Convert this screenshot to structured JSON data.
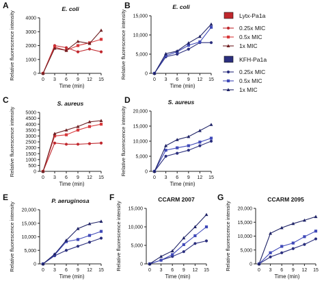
{
  "colors": {
    "lytx": "#c0272d",
    "kfh": "#2b2f7e",
    "lytx_dark": "#6e1f22",
    "kfh_dark": "#1e2266",
    "lytx_light": "#d8373a",
    "kfh_light": "#3f49b8"
  },
  "legends": [
    {
      "title": "Lytx-Pa1a",
      "group": "lytx",
      "entries": [
        {
          "label": "0.25x MIC",
          "marker": "circle"
        },
        {
          "label": "0.5x MIC",
          "marker": "square"
        },
        {
          "label": "1x MIC",
          "marker": "triangle"
        }
      ]
    },
    {
      "title": "KFH-Pa1a",
      "group": "kfh",
      "entries": [
        {
          "label": "0.25x MIC",
          "marker": "circle"
        },
        {
          "label": "0.5x MIC",
          "marker": "square"
        },
        {
          "label": "1x MIC",
          "marker": "triangle"
        }
      ]
    }
  ],
  "chart_data": [
    {
      "panel_letter": "A",
      "type": "line",
      "title": "E. coli",
      "title_italic": true,
      "group": "lytx",
      "xlabel": "Time (min)",
      "ylabel": "Relative fluorescence intensity",
      "x": [
        0,
        3,
        6,
        9,
        12,
        15
      ],
      "xticks": [
        "0",
        "3",
        "6",
        "9",
        "12",
        "15"
      ],
      "ylim": [
        0,
        4000
      ],
      "yticks": [
        0,
        1000,
        2000,
        3000,
        4000
      ],
      "ytick_labels": [
        "0",
        "1000",
        "2000",
        "3000",
        "4000"
      ],
      "series": [
        {
          "legend_label": "0.25x MIC",
          "marker": "circle",
          "values": [
            0,
            2000,
            1850,
            1550,
            1750,
            1550
          ]
        },
        {
          "legend_label": "0.5x MIC",
          "marker": "square",
          "values": [
            0,
            1900,
            1650,
            2000,
            2200,
            2450
          ]
        },
        {
          "legend_label": "1x MIC",
          "marker": "triangle",
          "values": [
            0,
            1800,
            1650,
            2300,
            2150,
            3100
          ]
        }
      ]
    },
    {
      "panel_letter": "B",
      "type": "line",
      "title": "E. coli",
      "title_italic": true,
      "group": "kfh",
      "xlabel": "Time (min)",
      "ylabel": "Relative fluorescence intensity",
      "x": [
        0,
        3,
        6,
        9,
        12,
        15
      ],
      "xticks": [
        "0",
        "3",
        "6",
        "9",
        "12",
        "15"
      ],
      "ylim": [
        0,
        15000
      ],
      "yticks": [
        0,
        5000,
        10000,
        15000
      ],
      "ytick_labels": [
        "0",
        "5,000",
        "10,000",
        "15,000"
      ],
      "series": [
        {
          "legend_label": "0.25x MIC",
          "marker": "circle",
          "values": [
            0,
            4300,
            5000,
            6300,
            8000,
            8000
          ]
        },
        {
          "legend_label": "0.5x MIC",
          "marker": "square",
          "values": [
            0,
            4600,
            5600,
            7300,
            8200,
            12000
          ]
        },
        {
          "legend_label": "1x MIC",
          "marker": "triangle",
          "values": [
            0,
            5100,
            5800,
            7900,
            9600,
            12800
          ]
        }
      ]
    },
    {
      "panel_letter": "C",
      "type": "line",
      "title": "S. aureus",
      "title_italic": true,
      "group": "lytx",
      "xlabel": "Time (min)",
      "ylabel": "Relative fluorescence intensity",
      "x": [
        0,
        3,
        6,
        9,
        12,
        15
      ],
      "xticks": [
        "0",
        "3",
        "6",
        "9",
        "12",
        "15"
      ],
      "ylim": [
        0,
        5000
      ],
      "yticks": [
        0,
        500,
        1000,
        1500,
        2000,
        2500,
        3000,
        3500,
        4000,
        4500,
        5000
      ],
      "ytick_labels": [
        "0",
        "500",
        "1000",
        "1500",
        "2000",
        "2500",
        "3000",
        "3500",
        "4000",
        "4500",
        "5000"
      ],
      "series": [
        {
          "legend_label": "0.25x MIC",
          "marker": "circle",
          "values": [
            0,
            2400,
            2300,
            2300,
            2350,
            2400
          ]
        },
        {
          "legend_label": "0.5x MIC",
          "marker": "square",
          "values": [
            0,
            3000,
            3100,
            3500,
            3800,
            4000
          ]
        },
        {
          "legend_label": "1x MIC",
          "marker": "triangle",
          "values": [
            0,
            3200,
            3500,
            3800,
            4200,
            4300
          ]
        }
      ]
    },
    {
      "panel_letter": "D",
      "type": "line",
      "title": "S. aureus",
      "title_italic": true,
      "group": "kfh",
      "xlabel": "Time (min)",
      "ylabel": "Relative fluorescence intensity",
      "x": [
        0,
        3,
        6,
        9,
        12,
        15
      ],
      "xticks": [
        "0",
        "3",
        "6",
        "9",
        "12",
        "15"
      ],
      "ylim": [
        0,
        20000
      ],
      "yticks": [
        0,
        5000,
        10000,
        15000,
        20000
      ],
      "ytick_labels": [
        "0",
        "5,000",
        "10,000",
        "15,000",
        "20,000"
      ],
      "series": [
        {
          "legend_label": "0.25x MIC",
          "marker": "circle",
          "values": [
            0,
            5000,
            6000,
            7000,
            8500,
            10000
          ]
        },
        {
          "legend_label": "0.5x MIC",
          "marker": "square",
          "values": [
            0,
            7000,
            7800,
            8500,
            9700,
            11000
          ]
        },
        {
          "legend_label": "1x MIC",
          "marker": "triangle",
          "values": [
            0,
            8500,
            10500,
            11500,
            13500,
            15500
          ]
        }
      ]
    },
    {
      "panel_letter": "E",
      "type": "line",
      "title": "P. aeruginosa",
      "title_italic": true,
      "group": "kfh",
      "xlabel": "Time (min)",
      "ylabel": "Relative fluorescence intensity",
      "x": [
        0,
        3,
        6,
        9,
        12,
        15
      ],
      "xticks": [
        "0",
        "3",
        "6",
        "9",
        "12",
        "15"
      ],
      "ylim": [
        0,
        20000
      ],
      "yticks": [
        0,
        5000,
        10000,
        15000,
        20000
      ],
      "ytick_labels": [
        "0",
        "5,000",
        "10,000",
        "15,000",
        "20,000"
      ],
      "series": [
        {
          "legend_label": "0.25x MIC",
          "marker": "circle",
          "values": [
            0,
            3000,
            5000,
            6500,
            8000,
            9500
          ]
        },
        {
          "legend_label": "0.5x MIC",
          "marker": "square",
          "values": [
            0,
            3300,
            8200,
            9000,
            10500,
            12000
          ]
        },
        {
          "legend_label": "1x MIC",
          "marker": "triangle",
          "values": [
            0,
            3600,
            8700,
            13000,
            14800,
            15700
          ]
        }
      ]
    },
    {
      "panel_letter": "F",
      "type": "line",
      "title": "CCARM 2007",
      "title_italic": false,
      "group": "kfh",
      "xlabel": "Time (min)",
      "ylabel": "Relative fluorescence intensity",
      "x": [
        0,
        3,
        6,
        9,
        12,
        15
      ],
      "xticks": [
        "0",
        "3",
        "6",
        "9",
        "12",
        "15"
      ],
      "ylim": [
        0,
        15000
      ],
      "yticks": [
        0,
        5000,
        10000,
        15000
      ],
      "ytick_labels": [
        "0",
        "5,000",
        "10,000",
        "15,000"
      ],
      "series": [
        {
          "legend_label": "0.25x MIC",
          "marker": "circle",
          "values": [
            0,
            1000,
            2000,
            3300,
            5500,
            6200
          ]
        },
        {
          "legend_label": "0.5x MIC",
          "marker": "square",
          "values": [
            0,
            1000,
            2500,
            5200,
            7600,
            10000
          ]
        },
        {
          "legend_label": "1x MIC",
          "marker": "triangle",
          "values": [
            0,
            2000,
            3500,
            7000,
            10000,
            13300
          ]
        }
      ]
    },
    {
      "panel_letter": "G",
      "type": "line",
      "title": "CCARM 2095",
      "title_italic": false,
      "group": "kfh",
      "xlabel": "Time (min)",
      "ylabel": "Relative fluorescence intensity",
      "x": [
        0,
        3,
        6,
        9,
        12,
        15
      ],
      "xticks": [
        "0",
        "3",
        "6",
        "9",
        "12",
        "15"
      ],
      "ylim": [
        0,
        20000
      ],
      "yticks": [
        0,
        5000,
        10000,
        15000,
        20000
      ],
      "ytick_labels": [
        "0",
        "5,000",
        "10,000",
        "15,000",
        "20,000"
      ],
      "series": [
        {
          "legend_label": "0.25x MIC",
          "marker": "circle",
          "values": [
            0,
            2500,
            4000,
            5500,
            7000,
            9000
          ]
        },
        {
          "legend_label": "0.5x MIC",
          "marker": "square",
          "values": [
            0,
            4000,
            6300,
            7500,
            9800,
            11800
          ]
        },
        {
          "legend_label": "1x MIC",
          "marker": "triangle",
          "values": [
            0,
            11000,
            13000,
            14500,
            15700,
            17000
          ]
        }
      ]
    }
  ]
}
